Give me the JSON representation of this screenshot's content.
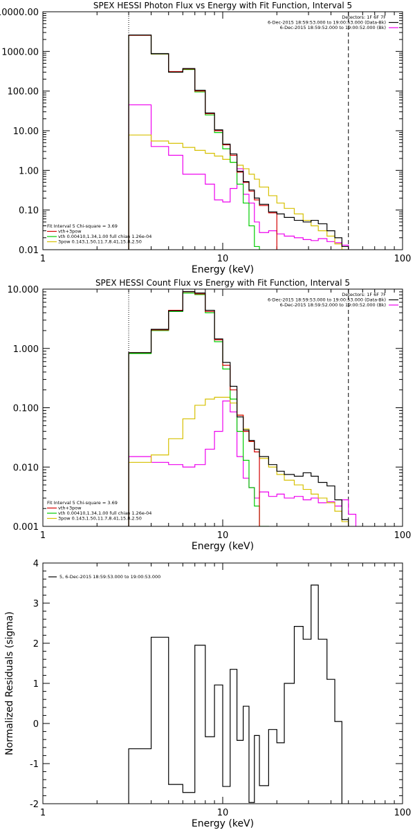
{
  "chart_data": [
    {
      "type": "line",
      "title": "SPEX HESSI Photon Flux vs Energy with Fit Function, Interval 5",
      "xlabel": "Energy (keV)",
      "ylabel": "",
      "xscale": "log",
      "yscale": "log",
      "xlim": [
        1,
        100
      ],
      "ylim": [
        0.01,
        10000
      ],
      "x_ticks": [
        "1",
        "10",
        "100"
      ],
      "y_ticks": [
        "0.01",
        "0.10",
        "1.00",
        "10.00",
        "100.00",
        "1000.00",
        "10000.00"
      ],
      "vlines": [
        3,
        50
      ],
      "legend_top": [
        "Detectors: 1F 6F 7F",
        "6-Dec-2015 18:59:53.000 to 19:00:53.000 (Data-Bk)",
        "6-Dec-2015 18:59:52.000 to 19:00:52.000 (Bk)"
      ],
      "legend_bottom": [
        "Fit Interval 5   Chi-square = 3.69",
        "vth+3pow",
        "vth 0.00410,1.34,1.00  full chian 1.26e-04",
        "3pow 0.143,1.50,11.7,8.41,15.8,2.50"
      ],
      "edges": [
        3,
        4,
        5,
        6,
        7,
        8,
        9,
        10,
        11,
        12,
        13,
        14,
        15,
        16,
        18,
        20,
        22,
        25,
        28,
        31,
        34,
        38,
        42,
        46,
        50,
        55,
        60
      ],
      "series": [
        {
          "name": "Data-Bk",
          "color": "#000000",
          "values": [
            2600,
            880,
            300,
            370,
            105,
            28,
            10.5,
            4.6,
            2.6,
            0.95,
            0.52,
            0.32,
            0.2,
            0.14,
            0.09,
            0.08,
            0.065,
            0.055,
            0.05,
            0.055,
            0.045,
            0.03,
            0.02,
            0.012
          ]
        },
        {
          "name": "vth+3pow",
          "color": "#d40000",
          "values": [
            2550,
            870,
            310,
            360,
            100,
            27,
            10,
            4.4,
            2.4,
            0.9,
            0.5,
            0.3,
            0.18,
            0.13,
            0.085
          ]
        },
        {
          "name": "vth",
          "color": "#00cc00",
          "values": [
            2550,
            860,
            300,
            350,
            95,
            25,
            9,
            3.5,
            1.6,
            0.45,
            0.15,
            0.04,
            0.012
          ]
        },
        {
          "name": "3pow",
          "color": "#d6c000",
          "values": [
            7.8,
            5.5,
            4.8,
            3.8,
            3.2,
            2.7,
            2.3,
            1.9,
            1.6,
            1.35,
            1.1,
            0.8,
            0.6,
            0.38,
            0.23,
            0.15,
            0.11,
            0.08,
            0.055,
            0.04,
            0.03,
            0.022,
            0.014,
            0.01
          ]
        },
        {
          "name": "Bk",
          "color": "#ee00ee",
          "values": [
            45,
            4,
            2.4,
            0.8,
            0.8,
            0.45,
            0.18,
            0.16,
            0.35,
            1.1,
            0.25,
            0.15,
            0.05,
            0.027,
            0.03,
            0.025,
            0.022,
            0.02,
            0.018,
            0.017,
            0.019,
            0.016,
            0.015,
            0.013
          ]
        }
      ]
    },
    {
      "type": "line",
      "title": "SPEX HESSI Count Flux vs Energy with Fit Function, Interval 5",
      "xlabel": "Energy (keV)",
      "ylabel": "",
      "xscale": "log",
      "yscale": "log",
      "xlim": [
        1,
        100
      ],
      "ylim": [
        0.001,
        10
      ],
      "x_ticks": [
        "1",
        "10",
        "100"
      ],
      "y_ticks": [
        "0.001",
        "0.010",
        "0.100",
        "1.000",
        "10.000"
      ],
      "vlines": [
        3,
        50
      ],
      "legend_top": [
        "Detectors: 1F 6F 7F",
        "6-Dec-2015 18:59:53.000 to 19:00:53.000 (Data-Bk)",
        "6-Dec-2015 18:59:52.000 to 19:00:52.000 (Bk)"
      ],
      "legend_bottom": [
        "Fit Interval 5   Chi-square = 3.69",
        "vth+3pow",
        "vth 0.00410,1.34,1.00  full chian 1.26e-04",
        "3pow 0.143,1.50,11.7,8.41,15.8,2.50"
      ],
      "edges": [
        3,
        4,
        5,
        6,
        7,
        8,
        9,
        10,
        11,
        12,
        13,
        14,
        15,
        16,
        18,
        20,
        22,
        25,
        28,
        31,
        34,
        38,
        42,
        46,
        50,
        55,
        60,
        65
      ],
      "series": [
        {
          "name": "Data-Bk",
          "color": "#000000",
          "values": [
            0.85,
            2.1,
            4.3,
            9.1,
            8.6,
            4.4,
            1.45,
            0.58,
            0.23,
            0.07,
            0.042,
            0.028,
            0.02,
            0.015,
            0.011,
            0.0085,
            0.0075,
            0.007,
            0.008,
            0.007,
            0.0055,
            0.0048,
            0.0028,
            0.0013
          ]
        },
        {
          "name": "vth+3pow",
          "color": "#d40000",
          "values": [
            0.85,
            2.05,
            4.4,
            9.0,
            8.3,
            4.2,
            1.4,
            0.52,
            0.2,
            0.075,
            0.04,
            0.027,
            0.018
          ]
        },
        {
          "name": "vth",
          "color": "#00cc00",
          "values": [
            0.82,
            2.0,
            4.2,
            8.6,
            8.1,
            4.0,
            1.3,
            0.45,
            0.14,
            0.04,
            0.013,
            0.0045,
            0.0022,
            0.001
          ]
        },
        {
          "name": "3pow",
          "color": "#d6c000",
          "values": [
            0.012,
            0.016,
            0.03,
            0.065,
            0.11,
            0.14,
            0.15,
            0.15,
            0.12,
            0.075,
            0.044,
            0.027,
            0.02,
            0.014,
            0.01,
            0.0075,
            0.006,
            0.005,
            0.0042,
            0.0035,
            0.003,
            0.0025,
            0.0018,
            0.0012,
            0.0009,
            0.0008
          ]
        },
        {
          "name": "Bk",
          "color": "#ee00ee",
          "values": [
            0.015,
            0.012,
            0.011,
            0.01,
            0.011,
            0.02,
            0.04,
            0.13,
            0.085,
            0.015,
            0.0065,
            0.0045,
            0.003,
            0.0038,
            0.0032,
            0.0035,
            0.003,
            0.0032,
            0.0028,
            0.003,
            0.0025,
            0.0026,
            0.0022,
            0.0028,
            0.0016
          ]
        }
      ]
    },
    {
      "type": "line",
      "title": "",
      "xlabel": "Energy (keV)",
      "ylabel": "Normalized Residuals (sigma)",
      "xscale": "log",
      "yscale": "linear",
      "xlim": [
        1,
        100
      ],
      "ylim": [
        -2,
        4
      ],
      "x_ticks": [
        "1",
        "10",
        "100"
      ],
      "y_ticks": [
        "-2",
        "-1",
        "0",
        "1",
        "2",
        "3",
        "4"
      ],
      "legend": [
        "5, 6-Dec-2015 18:59:53.000 to 19:00:53.000"
      ],
      "edges": [
        3,
        4,
        5,
        6,
        7,
        8,
        9,
        10,
        11,
        12,
        13,
        14,
        15,
        16,
        18,
        20,
        22,
        25,
        28,
        31,
        34,
        38,
        42,
        46,
        50
      ],
      "series": [
        {
          "name": "5, 6-Dec-2015 18:59:53.000 to 19:00:53.000",
          "color": "#000000",
          "values": [
            -0.63,
            2.15,
            -1.52,
            -1.72,
            1.95,
            -0.33,
            0.96,
            -1.57,
            1.35,
            -0.42,
            0.43,
            -1.97,
            -0.3,
            -1.55,
            -0.15,
            -0.48,
            1.0,
            2.42,
            2.1,
            3.45,
            2.1,
            1.1,
            0.05
          ]
        }
      ]
    }
  ]
}
